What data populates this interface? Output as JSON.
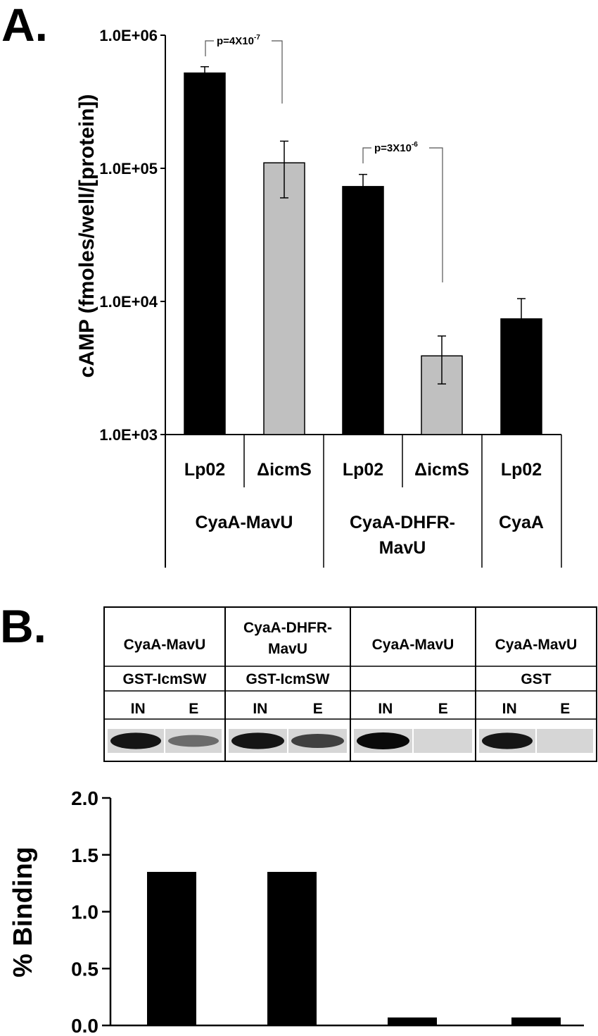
{
  "panel_a": {
    "letter": "A.",
    "p_values": [
      {
        "base": "p=4X10",
        "exp": "-7"
      },
      {
        "base": "p=3X10",
        "exp": "-6"
      }
    ],
    "strain_labels": [
      "Lp02",
      "ΔicmS",
      "Lp02",
      "ΔicmS",
      "Lp02"
    ],
    "group_labels": [
      [
        "CyaA-MavU"
      ],
      [
        "CyaA-DHFR-",
        "MavU"
      ],
      [
        "CyaA"
      ]
    ]
  },
  "panel_b": {
    "letter": "B.",
    "blot": {
      "constructs": [
        [
          "CyaA-MavU"
        ],
        [
          "CyaA-DHFR-",
          "MavU"
        ],
        [
          "CyaA-MavU"
        ],
        [
          "CyaA-MavU"
        ]
      ],
      "baits": [
        "GST-IcmSW",
        "GST-IcmSW",
        "",
        "GST"
      ],
      "lanes": [
        "IN",
        "E"
      ],
      "band_intensity": [
        [
          0.95,
          0.55
        ],
        [
          0.95,
          0.75
        ],
        [
          1.0,
          0.05
        ],
        [
          0.95,
          0.0
        ]
      ]
    }
  },
  "chart_data": [
    {
      "type": "bar",
      "scale": "log",
      "ylabel": "cAMP (fmoles/well/[protein])",
      "ylim": [
        1000,
        1000000
      ],
      "yticks": [
        "1.0E+03",
        "1.0E+04",
        "1.0E+05",
        "1.0E+06"
      ],
      "categories": [
        "CyaA-MavU Lp02",
        "CyaA-MavU ΔicmS",
        "CyaA-DHFR-MavU Lp02",
        "CyaA-DHFR-MavU ΔicmS",
        "CyaA Lp02"
      ],
      "values": [
        520000,
        110000,
        73000,
        3900,
        7400
      ],
      "error_low": [
        470000,
        60000,
        58000,
        2400,
        5000
      ],
      "error_high": [
        580000,
        160000,
        90000,
        5500,
        10500
      ],
      "bar_colors": [
        "#000000",
        "#c0c0c0",
        "#000000",
        "#c0c0c0",
        "#000000"
      ]
    },
    {
      "type": "bar",
      "ylabel": "% Binding",
      "ylim": [
        0,
        2.0
      ],
      "yticks": [
        "0.0",
        "0.5",
        "1.0",
        "1.5",
        "2.0"
      ],
      "categories": [
        "CyaA-MavU + GST-IcmSW",
        "CyaA-DHFR-MavU + GST-IcmSW",
        "CyaA-MavU",
        "CyaA-MavU + GST"
      ],
      "values": [
        1.35,
        1.35,
        0.07,
        0.07
      ],
      "bar_colors": [
        "#000000",
        "#000000",
        "#000000",
        "#000000"
      ]
    }
  ]
}
